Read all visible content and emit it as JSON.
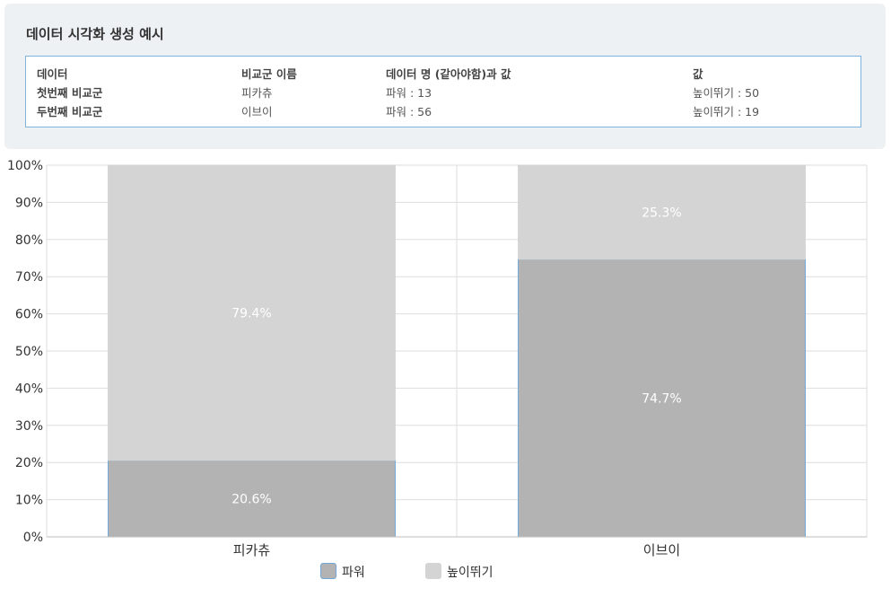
{
  "panel": {
    "title": "데이터 시각화 생성 예시",
    "headers": [
      "데이터",
      "비교군 이름",
      "데이터 명 (같아야함)과 값",
      "값"
    ],
    "rows": [
      [
        "첫번째 비교군",
        "피카츄",
        "파워 : 13",
        "높이뛰기 : 50"
      ],
      [
        "두번째 비교군",
        "이브이",
        "파워 : 56",
        "높이뛰기 : 19"
      ]
    ]
  },
  "chart_data": {
    "type": "bar",
    "stacked": "percent",
    "categories": [
      "피카츄",
      "이브이"
    ],
    "series": [
      {
        "name": "파워",
        "values": [
          20.6,
          74.7
        ],
        "labels": [
          "20.6%",
          "74.7%"
        ],
        "color": "#b3b3b3",
        "border": "#6fa6d6"
      },
      {
        "name": "높이뛰기",
        "values": [
          79.4,
          25.3
        ],
        "labels": [
          "79.4%",
          "25.3%"
        ],
        "color": "#d4d4d4",
        "border": "#d4d4d4"
      }
    ],
    "y_ticks": [
      "0%",
      "10%",
      "20%",
      "30%",
      "40%",
      "50%",
      "60%",
      "70%",
      "80%",
      "90%",
      "100%"
    ],
    "ylim": [
      0,
      100
    ],
    "grid": true,
    "legend_position": "bottom"
  }
}
